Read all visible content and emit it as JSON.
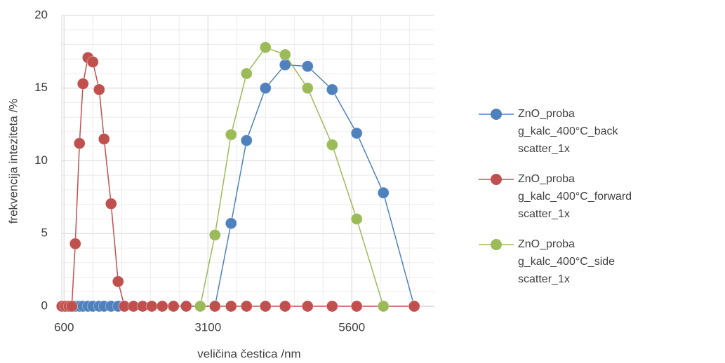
{
  "chart_data": {
    "type": "line",
    "x_label": "veličina čestica /nm",
    "y_label": "frekvencija inteziteta /%",
    "xlim": [
      560,
      7030
    ],
    "xticks": [
      600,
      3100,
      5600
    ],
    "ylim": [
      0,
      20
    ],
    "yticks": [
      0,
      5,
      10,
      15,
      20
    ],
    "grid": true,
    "legend": "right",
    "series": [
      {
        "name": "ZnO_proba g_kalc_400°C_back scatter_1x",
        "color": "#4f81bd",
        "x": [
          563,
          624,
          685,
          734,
          795,
          868,
          929,
          1015,
          1100,
          1210,
          1295,
          1417,
          1539,
          1649,
          3222,
          3502,
          3771,
          4100,
          4441,
          4832,
          5259,
          5685,
          6149,
          6685
        ],
        "values": [
          0,
          0,
          0,
          0,
          0,
          0,
          0,
          0,
          0,
          0,
          0,
          0,
          0,
          0,
          0,
          5.7,
          11.4,
          15.0,
          16.6,
          16.5,
          14.9,
          11.9,
          7.8,
          0
        ]
      },
      {
        "name": "ZnO_proba g_kalc_400°C_forward scatter_1x",
        "color": "#c0504d",
        "x": [
          563,
          624,
          685,
          734,
          795,
          868,
          929,
          1015,
          1100,
          1210,
          1295,
          1417,
          1539,
          1649,
          1807,
          1966,
          2124,
          2307,
          2502,
          2722,
          3222,
          3502,
          3771,
          4100,
          4441,
          4832,
          5259,
          5685,
          6685
        ],
        "values": [
          0,
          0,
          0,
          0,
          4.3,
          11.2,
          15.3,
          17.1,
          16.8,
          14.9,
          11.5,
          7.05,
          1.7,
          0,
          0,
          0,
          0,
          0,
          0,
          0,
          0,
          0,
          0,
          0,
          0,
          0,
          0,
          0,
          0
        ]
      },
      {
        "name": "ZnO_proba g_kalc_400°C_side scatter_1x",
        "color": "#9bbb59",
        "x": [
          2966,
          3222,
          3502,
          3771,
          4100,
          4441,
          4832,
          5259,
          5685,
          6149
        ],
        "values": [
          0,
          4.9,
          11.8,
          16.0,
          17.8,
          17.3,
          15.0,
          11.1,
          6.0,
          0
        ]
      }
    ]
  }
}
